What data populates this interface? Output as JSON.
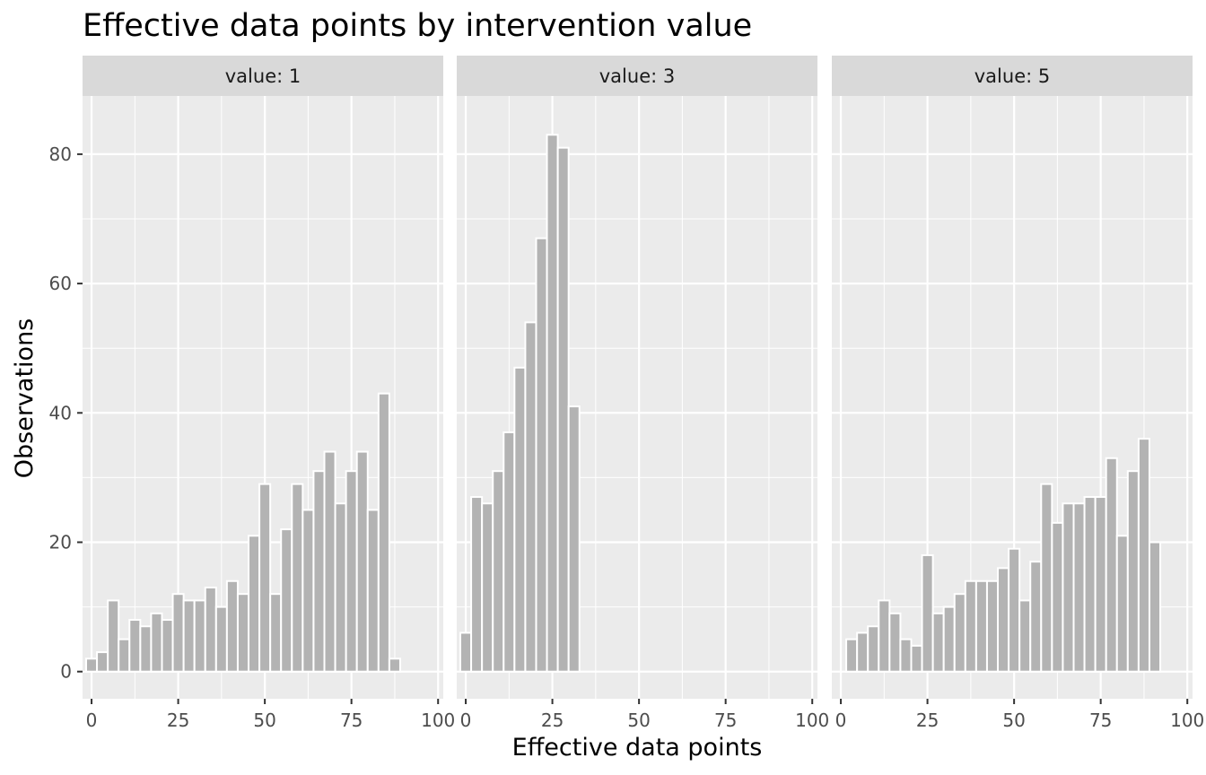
{
  "chart_data": {
    "type": "bar",
    "title": "Effective data points by intervention value",
    "xlabel": "Effective data points",
    "ylabel": "Observations",
    "xlim": [
      -2.6,
      101.5
    ],
    "ylim": [
      -4.2,
      89
    ],
    "x_ticks": [
      0,
      25,
      50,
      75,
      100
    ],
    "y_ticks": [
      0,
      20,
      40,
      60,
      80
    ],
    "x_tick_labels": [
      "0",
      "25",
      "50",
      "75",
      "100"
    ],
    "y_tick_labels": [
      "0",
      "20",
      "40",
      "60",
      "80"
    ],
    "bin_width": 3.125,
    "grid": true,
    "bar_color": "#b3b3b3",
    "panel_background": "#ebebeb",
    "strip_background": "#d9d9d9",
    "facets": [
      {
        "label": "value: 1",
        "bins": [
          {
            "x": 0.0,
            "y": 2
          },
          {
            "x": 3.125,
            "y": 3
          },
          {
            "x": 6.25,
            "y": 11
          },
          {
            "x": 9.375,
            "y": 5
          },
          {
            "x": 12.5,
            "y": 8
          },
          {
            "x": 15.625,
            "y": 7
          },
          {
            "x": 18.75,
            "y": 9
          },
          {
            "x": 21.875,
            "y": 8
          },
          {
            "x": 25.0,
            "y": 12
          },
          {
            "x": 28.125,
            "y": 11
          },
          {
            "x": 31.25,
            "y": 11
          },
          {
            "x": 34.375,
            "y": 13
          },
          {
            "x": 37.5,
            "y": 10
          },
          {
            "x": 40.625,
            "y": 14
          },
          {
            "x": 43.75,
            "y": 12
          },
          {
            "x": 46.875,
            "y": 21
          },
          {
            "x": 50.0,
            "y": 29
          },
          {
            "x": 53.125,
            "y": 12
          },
          {
            "x": 56.25,
            "y": 22
          },
          {
            "x": 59.375,
            "y": 29
          },
          {
            "x": 62.5,
            "y": 25
          },
          {
            "x": 65.625,
            "y": 31
          },
          {
            "x": 68.75,
            "y": 34
          },
          {
            "x": 71.875,
            "y": 26
          },
          {
            "x": 75.0,
            "y": 31
          },
          {
            "x": 78.125,
            "y": 34
          },
          {
            "x": 81.25,
            "y": 25
          },
          {
            "x": 84.375,
            "y": 43
          },
          {
            "x": 87.5,
            "y": 2
          }
        ]
      },
      {
        "label": "value: 3",
        "bins": [
          {
            "x": 0.0,
            "y": 6
          },
          {
            "x": 3.125,
            "y": 27
          },
          {
            "x": 6.25,
            "y": 26
          },
          {
            "x": 9.375,
            "y": 31
          },
          {
            "x": 12.5,
            "y": 37
          },
          {
            "x": 15.625,
            "y": 47
          },
          {
            "x": 18.75,
            "y": 54
          },
          {
            "x": 21.875,
            "y": 67
          },
          {
            "x": 25.0,
            "y": 83
          },
          {
            "x": 28.125,
            "y": 81
          },
          {
            "x": 31.25,
            "y": 41
          }
        ]
      },
      {
        "label": "value: 5",
        "bins": [
          {
            "x": 3.125,
            "y": 5
          },
          {
            "x": 6.25,
            "y": 6
          },
          {
            "x": 9.375,
            "y": 7
          },
          {
            "x": 12.5,
            "y": 11
          },
          {
            "x": 15.625,
            "y": 9
          },
          {
            "x": 18.75,
            "y": 5
          },
          {
            "x": 21.875,
            "y": 4
          },
          {
            "x": 25.0,
            "y": 18
          },
          {
            "x": 28.125,
            "y": 9
          },
          {
            "x": 31.25,
            "y": 10
          },
          {
            "x": 34.375,
            "y": 12
          },
          {
            "x": 37.5,
            "y": 14
          },
          {
            "x": 40.625,
            "y": 14
          },
          {
            "x": 43.75,
            "y": 14
          },
          {
            "x": 46.875,
            "y": 16
          },
          {
            "x": 50.0,
            "y": 19
          },
          {
            "x": 53.125,
            "y": 11
          },
          {
            "x": 56.25,
            "y": 17
          },
          {
            "x": 59.375,
            "y": 29
          },
          {
            "x": 62.5,
            "y": 23
          },
          {
            "x": 65.625,
            "y": 26
          },
          {
            "x": 68.75,
            "y": 26
          },
          {
            "x": 71.875,
            "y": 27
          },
          {
            "x": 75.0,
            "y": 27
          },
          {
            "x": 78.125,
            "y": 33
          },
          {
            "x": 81.25,
            "y": 21
          },
          {
            "x": 84.375,
            "y": 31
          },
          {
            "x": 87.5,
            "y": 36
          },
          {
            "x": 90.625,
            "y": 20
          }
        ]
      }
    ]
  }
}
